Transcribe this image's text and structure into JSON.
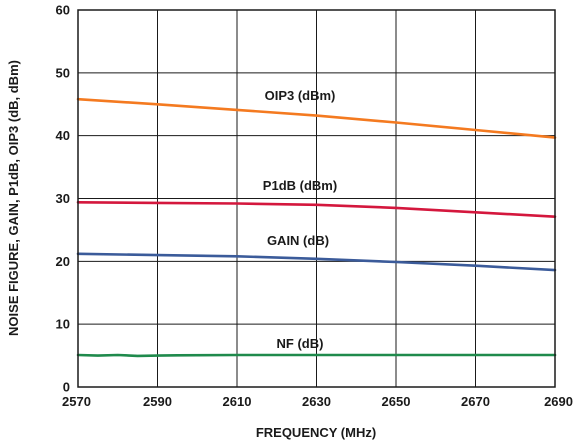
{
  "chart_data": {
    "type": "line",
    "title": "",
    "xlabel": "FREQUENCY (MHz)",
    "ylabel": "NOISE FIGURE, GAIN, P1dB, OIP3 (dB, dBm)",
    "xlim": [
      2570,
      2690
    ],
    "ylim": [
      0,
      60
    ],
    "xticks": [
      2570,
      2590,
      2610,
      2630,
      2650,
      2670,
      2690
    ],
    "yticks": [
      0,
      10,
      20,
      30,
      40,
      50,
      60
    ],
    "grid": true,
    "legend": "inline labels",
    "series": [
      {
        "name": "OIP3 (dBm)",
        "color": "#f47a20",
        "x": [
          2570,
          2590,
          2610,
          2630,
          2650,
          2670,
          2690
        ],
        "y": [
          45.8,
          45.0,
          44.1,
          43.2,
          42.1,
          40.9,
          39.7
        ]
      },
      {
        "name": "P1dB (dBm)",
        "color": "#d4173d",
        "x": [
          2570,
          2590,
          2610,
          2630,
          2650,
          2670,
          2690
        ],
        "y": [
          29.4,
          29.3,
          29.2,
          29.0,
          28.5,
          27.8,
          27.1
        ]
      },
      {
        "name": "GAIN (dB)",
        "color": "#3b5b9a",
        "x": [
          2570,
          2590,
          2610,
          2630,
          2650,
          2670,
          2690
        ],
        "y": [
          21.2,
          21.0,
          20.8,
          20.4,
          19.9,
          19.3,
          18.6
        ]
      },
      {
        "name": "NF (dB)",
        "color": "#1f8a4c",
        "x": [
          2570,
          2575,
          2580,
          2585,
          2590,
          2595,
          2610,
          2630,
          2650,
          2670,
          2690
        ],
        "y": [
          5.1,
          5.0,
          5.1,
          4.95,
          5.0,
          5.05,
          5.1,
          5.1,
          5.1,
          5.1,
          5.1
        ]
      }
    ]
  }
}
